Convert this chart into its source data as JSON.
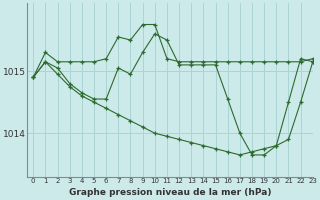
{
  "bg_color": "#cceaea",
  "grid_color": "#aad4d4",
  "line_color": "#2d6a2d",
  "marker_color": "#2d6a2d",
  "title": "Graphe pression niveau de la mer (hPa)",
  "xlim": [
    -0.5,
    23
  ],
  "ylim": [
    1013.3,
    1016.1
  ],
  "yticks": [
    1014,
    1015
  ],
  "xticks": [
    0,
    1,
    2,
    3,
    4,
    5,
    6,
    7,
    8,
    9,
    10,
    11,
    12,
    13,
    14,
    15,
    16,
    17,
    18,
    19,
    20,
    21,
    22,
    23
  ],
  "series": [
    {
      "x": [
        0,
        1,
        2,
        3,
        4,
        5,
        6,
        7,
        8,
        9,
        10,
        11,
        12,
        13,
        14,
        15,
        16,
        17,
        18,
        19,
        20,
        21,
        22,
        23
      ],
      "y": [
        1014.9,
        1015.3,
        1015.15,
        1015.15,
        1015.15,
        1015.15,
        1015.2,
        1015.55,
        1015.5,
        1015.75,
        1015.75,
        1015.2,
        1015.15,
        1015.15,
        1015.15,
        1015.15,
        1015.15,
        1015.15,
        1015.15,
        1015.15,
        1015.15,
        1015.15,
        1015.15,
        1015.2
      ]
    },
    {
      "x": [
        0,
        1,
        2,
        3,
        4,
        5,
        6,
        7,
        8,
        9,
        10,
        11,
        12,
        13,
        14,
        15,
        16,
        17,
        18,
        19,
        20,
        21,
        22,
        23
      ],
      "y": [
        1014.9,
        1015.15,
        1015.05,
        1014.8,
        1014.65,
        1014.55,
        1014.55,
        1015.05,
        1014.95,
        1015.3,
        1015.6,
        1015.5,
        1015.1,
        1015.1,
        1015.1,
        1015.1,
        1014.55,
        1014.0,
        1013.65,
        1013.65,
        1013.8,
        1014.5,
        1015.2,
        1015.15
      ]
    },
    {
      "x": [
        0,
        1,
        2,
        3,
        4,
        5,
        6,
        7,
        8,
        9,
        10,
        11,
        12,
        13,
        14,
        15,
        16,
        17,
        18,
        19,
        20,
        21,
        22,
        23
      ],
      "y": [
        1014.9,
        1015.15,
        1014.95,
        1014.75,
        1014.6,
        1014.5,
        1014.4,
        1014.3,
        1014.2,
        1014.1,
        1014.0,
        1013.95,
        1013.9,
        1013.85,
        1013.8,
        1013.75,
        1013.7,
        1013.65,
        1013.7,
        1013.75,
        1013.8,
        1013.9,
        1014.5,
        1015.15
      ]
    }
  ]
}
